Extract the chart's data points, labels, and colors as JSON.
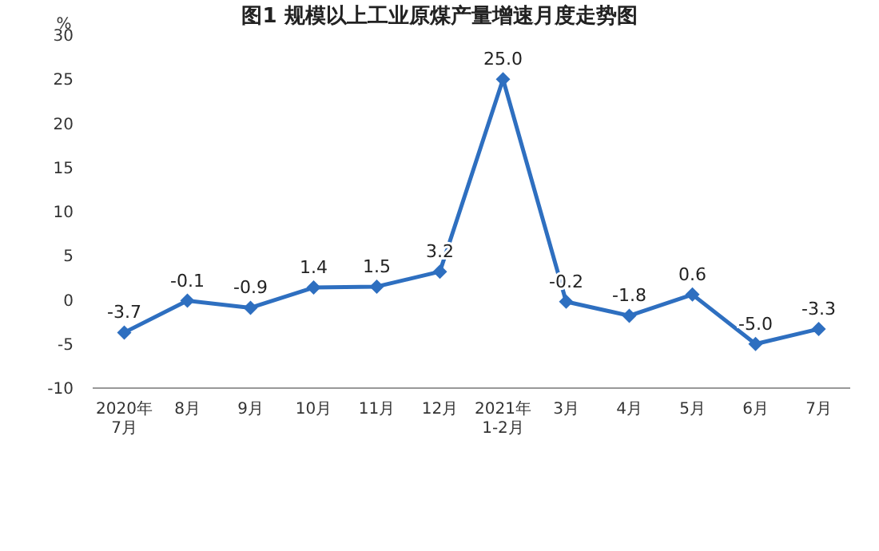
{
  "chart_data": {
    "type": "line",
    "title": "图1  规模以上工业原煤产量增速月度走势图",
    "ylabel": "%",
    "categories": [
      "2020年\n7月",
      "8月",
      "9月",
      "10月",
      "11月",
      "12月",
      "2021年\n1-2月",
      "3月",
      "4月",
      "5月",
      "6月",
      "7月"
    ],
    "series": [
      {
        "color": "#2e6fc0",
        "values": [
          -3.7,
          -0.1,
          -0.9,
          1.4,
          1.5,
          3.2,
          25.0,
          -0.2,
          -1.8,
          0.6,
          -5.0,
          -3.3
        ],
        "value_labels": [
          "-3.7",
          "-0.1",
          "-0.9",
          "1.4",
          "1.5",
          "3.2",
          "25.0",
          "-0.2",
          "-1.8",
          "0.6",
          "-5.0",
          "-3.3"
        ]
      }
    ],
    "ylim": [
      -10,
      30
    ],
    "yticks": [
      -10,
      -5,
      0,
      5,
      10,
      15,
      20,
      25,
      30
    ],
    "marker": "diamond",
    "line_style": "solid",
    "grid": false
  }
}
